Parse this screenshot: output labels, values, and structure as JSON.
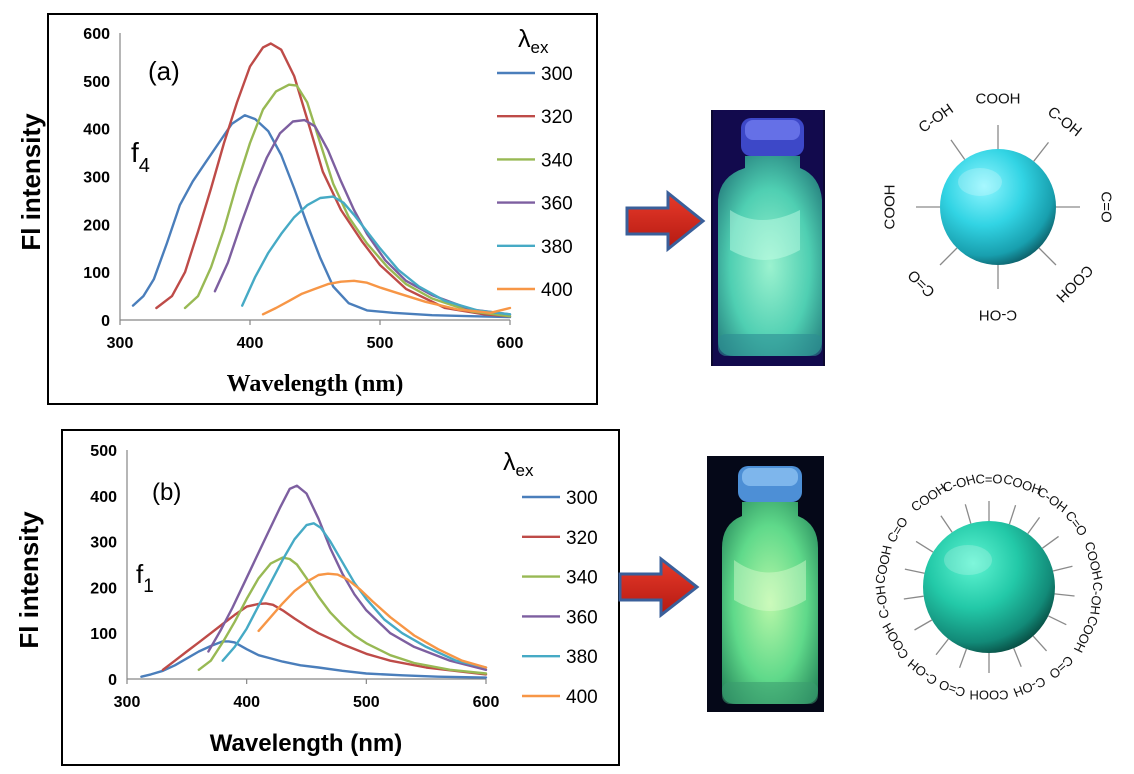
{
  "chart_data": [
    {
      "type": "line",
      "panel_label": "(a)",
      "sample_label": "f",
      "sample_subscript": "4",
      "xlabel": "Wavelength (nm)",
      "ylabel": "Fl intensity",
      "xlim": [
        300,
        600
      ],
      "ylim": [
        0,
        600
      ],
      "xticks": [
        "300",
        "400",
        "500",
        "600"
      ],
      "yticks": [
        "0",
        "100",
        "200",
        "300",
        "400",
        "500",
        "600"
      ],
      "legend_title": "λ",
      "legend_title_sub": "ex",
      "legend_placement": "right",
      "grid": false,
      "series": [
        {
          "name": "300",
          "color": "#4a7ebb",
          "x": [
            310,
            318,
            326,
            336,
            346,
            356,
            366,
            376,
            386,
            396,
            404,
            414,
            424,
            434,
            444,
            454,
            464,
            476,
            490,
            510,
            540,
            570,
            600
          ],
          "y": [
            30,
            50,
            85,
            160,
            240,
            290,
            330,
            370,
            410,
            428,
            420,
            395,
            345,
            275,
            200,
            130,
            70,
            35,
            20,
            15,
            10,
            8,
            6
          ]
        },
        {
          "name": "320",
          "color": "#be4b48",
          "x": [
            328,
            340,
            350,
            360,
            370,
            380,
            390,
            400,
            410,
            416,
            424,
            434,
            444,
            456,
            470,
            486,
            500,
            520,
            550,
            580,
            600
          ],
          "y": [
            25,
            50,
            100,
            185,
            275,
            370,
            455,
            530,
            570,
            578,
            565,
            510,
            420,
            310,
            230,
            165,
            115,
            65,
            25,
            12,
            8
          ]
        },
        {
          "name": "340",
          "color": "#98b954",
          "x": [
            350,
            360,
            370,
            380,
            390,
            400,
            410,
            420,
            430,
            436,
            444,
            454,
            464,
            476,
            490,
            506,
            520,
            540,
            570,
            600
          ],
          "y": [
            25,
            50,
            110,
            190,
            285,
            370,
            440,
            478,
            492,
            490,
            455,
            370,
            285,
            215,
            160,
            110,
            75,
            45,
            18,
            8
          ]
        },
        {
          "name": "360",
          "color": "#7d5fa0",
          "x": [
            373,
            383,
            393,
            403,
            413,
            423,
            433,
            442,
            450,
            460,
            470,
            480,
            490,
            504,
            520,
            540,
            570,
            600
          ],
          "y": [
            60,
            120,
            200,
            275,
            340,
            390,
            415,
            418,
            405,
            355,
            290,
            230,
            180,
            125,
            82,
            52,
            22,
            12
          ]
        },
        {
          "name": "380",
          "color": "#46aac5",
          "x": [
            394,
            404,
            414,
            424,
            434,
            444,
            454,
            464,
            472,
            480,
            490,
            500,
            514,
            530,
            550,
            575,
            600
          ],
          "y": [
            30,
            90,
            140,
            180,
            215,
            240,
            255,
            258,
            245,
            220,
            185,
            150,
            105,
            70,
            40,
            20,
            12
          ]
        },
        {
          "name": "400",
          "color": "#f79646",
          "x": [
            410,
            420,
            430,
            440,
            450,
            460,
            470,
            480,
            490,
            500,
            515,
            535,
            560,
            585,
            600
          ],
          "y": [
            12,
            25,
            40,
            55,
            65,
            75,
            80,
            82,
            78,
            68,
            55,
            38,
            22,
            15,
            25
          ]
        }
      ]
    },
    {
      "type": "line",
      "panel_label": "(b)",
      "sample_label": "f",
      "sample_subscript": "1",
      "xlabel": "Wavelength (nm)",
      "ylabel": "Fl intensity",
      "xlim": [
        300,
        600
      ],
      "ylim": [
        0,
        500
      ],
      "xticks": [
        "300",
        "400",
        "500",
        "600"
      ],
      "yticks": [
        "0",
        "100",
        "200",
        "300",
        "400",
        "500"
      ],
      "legend_title": "λ",
      "legend_title_sub": "ex",
      "legend_placement": "right",
      "grid": false,
      "series": [
        {
          "name": "300",
          "color": "#4a7ebb",
          "x": [
            312,
            320,
            330,
            340,
            350,
            360,
            370,
            380,
            385,
            390,
            400,
            410,
            420,
            430,
            445,
            460,
            480,
            500,
            530,
            560,
            600
          ],
          "y": [
            5,
            10,
            18,
            30,
            45,
            60,
            72,
            82,
            82,
            80,
            65,
            52,
            45,
            38,
            30,
            25,
            18,
            12,
            8,
            5,
            3
          ]
        },
        {
          "name": "320",
          "color": "#be4b48",
          "x": [
            330,
            340,
            350,
            360,
            370,
            380,
            390,
            400,
            410,
            416,
            422,
            430,
            440,
            450,
            460,
            470,
            480,
            500,
            520,
            550,
            600
          ],
          "y": [
            20,
            40,
            60,
            80,
            100,
            120,
            140,
            158,
            164,
            165,
            162,
            150,
            132,
            115,
            100,
            88,
            76,
            55,
            40,
            25,
            10
          ]
        },
        {
          "name": "340",
          "color": "#98b954",
          "x": [
            360,
            370,
            380,
            390,
            400,
            410,
            420,
            430,
            436,
            442,
            450,
            460,
            470,
            480,
            490,
            500,
            520,
            540,
            570,
            600
          ],
          "y": [
            20,
            40,
            80,
            125,
            175,
            220,
            252,
            265,
            262,
            250,
            220,
            180,
            145,
            118,
            95,
            78,
            52,
            35,
            20,
            12
          ]
        },
        {
          "name": "360",
          "color": "#7d5fa0",
          "x": [
            368,
            378,
            388,
            398,
            408,
            418,
            428,
            436,
            442,
            450,
            460,
            470,
            480,
            490,
            500,
            520,
            540,
            570,
            600
          ],
          "y": [
            60,
            105,
            155,
            210,
            265,
            320,
            375,
            415,
            422,
            405,
            350,
            285,
            230,
            185,
            150,
            100,
            70,
            40,
            20
          ]
        },
        {
          "name": "380",
          "color": "#46aac5",
          "x": [
            380,
            390,
            400,
            410,
            420,
            430,
            440,
            450,
            456,
            462,
            470,
            480,
            490,
            500,
            515,
            530,
            550,
            575,
            600
          ],
          "y": [
            40,
            70,
            110,
            160,
            210,
            260,
            305,
            336,
            340,
            330,
            300,
            255,
            210,
            175,
            130,
            100,
            70,
            40,
            25
          ]
        },
        {
          "name": "400",
          "color": "#f79646",
          "x": [
            410,
            420,
            430,
            440,
            450,
            460,
            468,
            476,
            484,
            495,
            505,
            520,
            540,
            560,
            580,
            600
          ],
          "y": [
            105,
            135,
            165,
            192,
            212,
            227,
            230,
            228,
            218,
            195,
            170,
            135,
            95,
            65,
            40,
            25
          ]
        }
      ]
    }
  ],
  "diagrams": [
    {
      "labels": [
        {
          "text": "COOH",
          "angle": -90
        },
        {
          "text": "C-OH",
          "angle": -52
        },
        {
          "text": "C=O",
          "angle": 0
        },
        {
          "text": "COOH",
          "angle": 45
        },
        {
          "text": "C-OH",
          "angle": 90
        },
        {
          "text": "C=O",
          "angle": 135
        },
        {
          "text": "COOH",
          "angle": 180
        },
        {
          "text": "C-OH",
          "angle": -125
        }
      ]
    },
    {
      "labels": [
        {
          "text": "C=O",
          "angle": -90
        },
        {
          "text": "COOH",
          "angle": -72
        },
        {
          "text": "C-OH",
          "angle": -54
        },
        {
          "text": "C=O",
          "angle": -36
        },
        {
          "text": "COOH",
          "angle": -14
        },
        {
          "text": "C-OH",
          "angle": 6
        },
        {
          "text": "COOH",
          "angle": 26
        },
        {
          "text": "C=O",
          "angle": 48
        },
        {
          "text": "C-OH",
          "angle": 68
        },
        {
          "text": "COOH",
          "angle": 90
        },
        {
          "text": "C=O",
          "angle": 110
        },
        {
          "text": "C-OH",
          "angle": 128
        },
        {
          "text": "COOH",
          "angle": 150
        },
        {
          "text": "C-OH",
          "angle": 172
        },
        {
          "text": "COOH",
          "angle": 192
        },
        {
          "text": "C=O",
          "angle": 212
        },
        {
          "text": "COOH",
          "angle": 236
        },
        {
          "text": "C-OH",
          "angle": 254
        }
      ]
    }
  ]
}
